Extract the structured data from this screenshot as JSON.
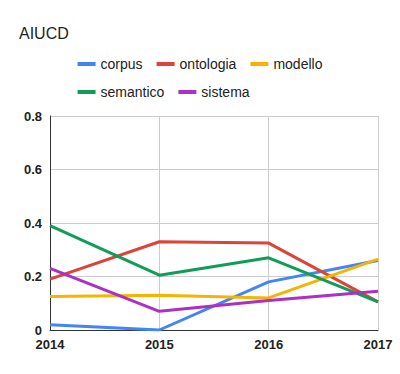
{
  "chart_data": {
    "type": "line",
    "title": "AIUCD",
    "categories": [
      "2014",
      "2015",
      "2016",
      "2017"
    ],
    "series": [
      {
        "name": "corpus",
        "color": "#4285f4",
        "values": [
          0.02,
          0.0,
          0.18,
          0.26
        ]
      },
      {
        "name": "ontologia",
        "color": "#db4437",
        "values": [
          0.19,
          0.33,
          0.325,
          0.105
        ]
      },
      {
        "name": "modello",
        "color": "#f4b400",
        "values": [
          0.125,
          0.13,
          0.12,
          0.265
        ]
      },
      {
        "name": "semantico",
        "color": "#0f9d58",
        "values": [
          0.39,
          0.205,
          0.27,
          0.105
        ]
      },
      {
        "name": "sistema",
        "color": "#ab30c4",
        "values": [
          0.23,
          0.07,
          0.11,
          0.145
        ]
      }
    ],
    "ylim": [
      0,
      0.8
    ],
    "yticks": [
      0,
      0.2,
      0.4,
      0.6,
      0.8
    ],
    "grid": true,
    "legend": "top"
  }
}
